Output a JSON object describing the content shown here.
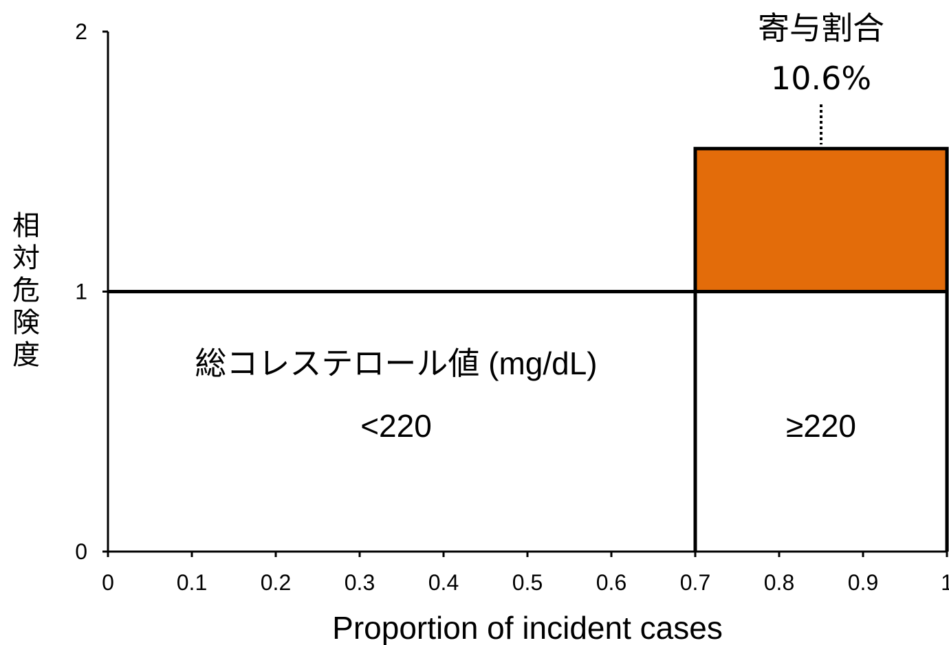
{
  "chart_data": {
    "type": "area",
    "xlabel": "Proportion of incident cases",
    "ylabel": "相対危険度",
    "xlim": [
      0,
      1
    ],
    "ylim": [
      0,
      2
    ],
    "xticks": [
      "0",
      "0.1",
      "0.2",
      "0.3",
      "0.4",
      "0.5",
      "0.6",
      "0.7",
      "0.8",
      "0.9",
      "1"
    ],
    "yticks": [
      "0",
      "1",
      "2"
    ],
    "grid": false,
    "groups": [
      {
        "label": "<220",
        "x_start": 0,
        "x_end": 0.7,
        "relative_risk": 1
      },
      {
        "label": "≥220",
        "x_start": 0.7,
        "x_end": 1,
        "relative_risk": 1.55
      }
    ],
    "baseline_risk": 1,
    "excess_area_color": "#E36C0A",
    "variable_label": "総コレステロール値 (mg/dL)",
    "annotation": {
      "title": "寄与割合",
      "value": "10.6%"
    }
  }
}
